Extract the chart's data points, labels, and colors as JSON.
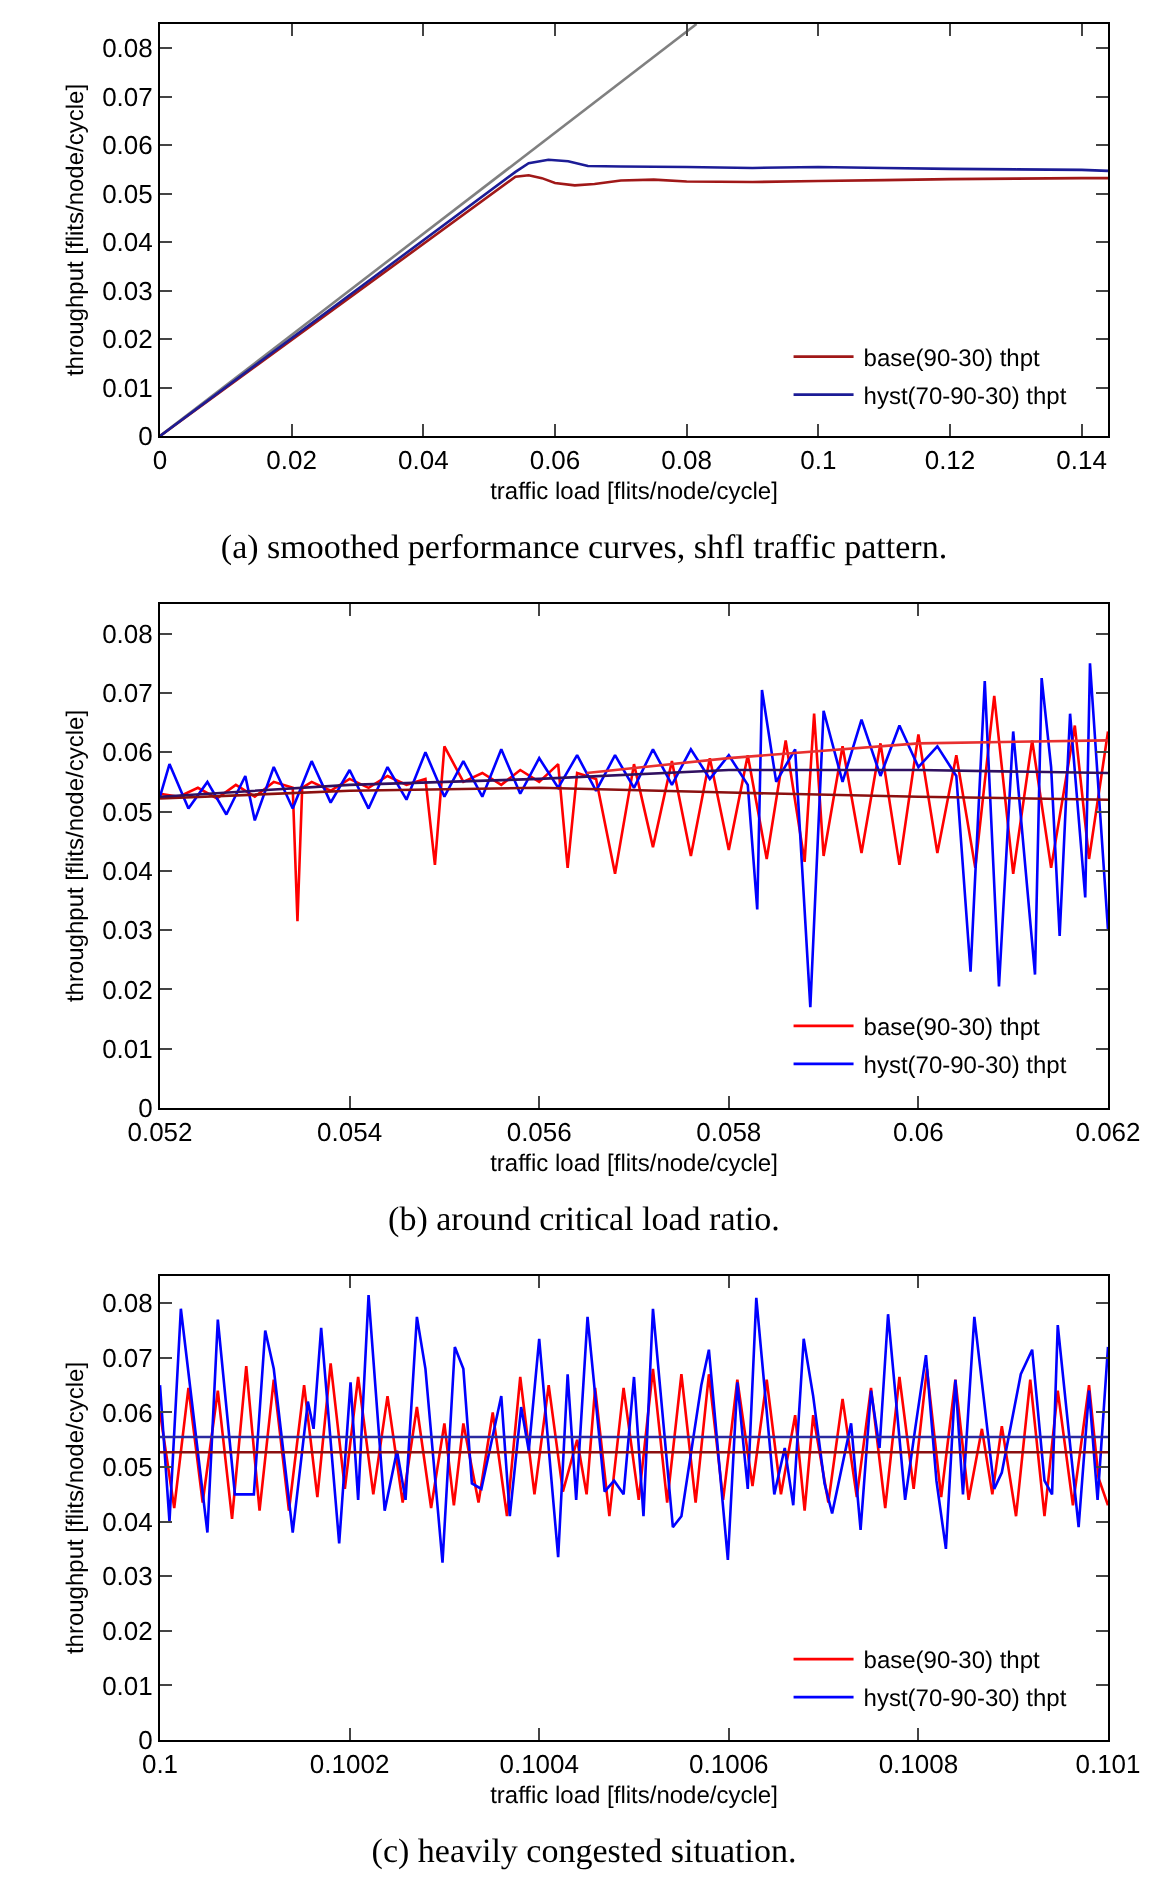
{
  "chart_data": [
    {
      "type": "line",
      "title": "(a) smoothed performance curves, shfl traffic pattern.",
      "xlabel": "traffic load [flits/node/cycle]",
      "ylabel": "throughput [flits/node/cycle]",
      "xlim": [
        0,
        0.144
      ],
      "ylim": [
        0,
        0.085
      ],
      "xticks": [
        0,
        0.02,
        0.04,
        0.06,
        0.08,
        0.1,
        0.12,
        0.14
      ],
      "yticks": [
        0,
        0.01,
        0.02,
        0.03,
        0.04,
        0.05,
        0.06,
        0.07,
        0.08
      ],
      "legend": "bottom right",
      "series": [
        {
          "color": "#808080",
          "x": [
            0,
            0.0815
          ],
          "values": [
            0,
            0.085
          ]
        },
        {
          "name": "base(90-30) thpt",
          "color": "#a01818",
          "x": [
            0,
            0.054,
            0.056,
            0.058,
            0.06,
            0.063,
            0.066,
            0.07,
            0.075,
            0.08,
            0.09,
            0.1,
            0.11,
            0.12,
            0.13,
            0.14,
            0.144
          ],
          "values": [
            0,
            0.0535,
            0.0538,
            0.0532,
            0.0522,
            0.0517,
            0.052,
            0.0527,
            0.0529,
            0.0525,
            0.0524,
            0.0526,
            0.0528,
            0.053,
            0.0531,
            0.0532,
            0.0532
          ]
        },
        {
          "name": "hyst(70-90-30) thpt",
          "color": "#1c1c96",
          "x": [
            0,
            0.054,
            0.056,
            0.059,
            0.062,
            0.065,
            0.07,
            0.08,
            0.09,
            0.1,
            0.11,
            0.12,
            0.13,
            0.14,
            0.144
          ],
          "values": [
            0,
            0.0545,
            0.0563,
            0.057,
            0.0567,
            0.0557,
            0.0556,
            0.0555,
            0.0553,
            0.0555,
            0.0553,
            0.0551,
            0.055,
            0.0549,
            0.0547
          ]
        }
      ]
    },
    {
      "type": "line",
      "title": "(b) around critical load ratio.",
      "xlabel": "traffic load [flits/node/cycle]",
      "ylabel": "throughput [flits/node/cycle]",
      "xlim": [
        0.052,
        0.062
      ],
      "ylim": [
        0,
        0.085
      ],
      "xticks": [
        0.052,
        0.054,
        0.056,
        0.058,
        0.06,
        0.062
      ],
      "yticks": [
        0,
        0.01,
        0.02,
        0.03,
        0.04,
        0.05,
        0.06,
        0.07,
        0.08
      ],
      "legend": "bottom right",
      "series": [
        {
          "name": "base(90-30) thpt",
          "color": "#ff0000",
          "x": [
            0.052,
            0.0522,
            0.0524,
            0.0526,
            0.0528,
            0.053,
            0.0532,
            0.0534,
            0.05345,
            0.0535,
            0.0536,
            0.0538,
            0.054,
            0.0542,
            0.0544,
            0.0546,
            0.0548,
            0.0549,
            0.055,
            0.0552,
            0.0554,
            0.0556,
            0.0558,
            0.056,
            0.0562,
            0.0563,
            0.0564,
            0.0566,
            0.0568,
            0.057,
            0.0572,
            0.0574,
            0.0576,
            0.0578,
            0.058,
            0.0582,
            0.0584,
            0.0586,
            0.0588,
            0.0589,
            0.059,
            0.0592,
            0.0594,
            0.0596,
            0.0598,
            0.06,
            0.0602,
            0.0604,
            0.0606,
            0.0608,
            0.061,
            0.0612,
            0.0614,
            0.06165,
            0.0618,
            0.062
          ],
          "values": [
            0.053,
            0.0525,
            0.054,
            0.0522,
            0.0545,
            0.0525,
            0.055,
            0.054,
            0.0315,
            0.054,
            0.055,
            0.0535,
            0.0555,
            0.054,
            0.056,
            0.0545,
            0.0555,
            0.041,
            0.061,
            0.055,
            0.0565,
            0.0545,
            0.057,
            0.055,
            0.058,
            0.0405,
            0.0565,
            0.0555,
            0.0395,
            0.058,
            0.044,
            0.0585,
            0.0425,
            0.059,
            0.0435,
            0.0595,
            0.042,
            0.062,
            0.0415,
            0.0665,
            0.0425,
            0.061,
            0.043,
            0.0615,
            0.041,
            0.063,
            0.043,
            0.0595,
            0.0405,
            0.0695,
            0.0395,
            0.062,
            0.0405,
            0.0645,
            0.042,
            0.0635
          ]
        },
        {
          "name": "hyst(70-90-30) thpt",
          "color": "#0000ff",
          "x": [
            0.052,
            0.0521,
            0.0523,
            0.0525,
            0.0527,
            0.0529,
            0.053,
            0.0532,
            0.0534,
            0.0536,
            0.0538,
            0.054,
            0.0542,
            0.0544,
            0.0546,
            0.0548,
            0.055,
            0.0552,
            0.0554,
            0.0556,
            0.0558,
            0.056,
            0.0562,
            0.0564,
            0.0566,
            0.0568,
            0.057,
            0.0572,
            0.0574,
            0.0576,
            0.0578,
            0.058,
            0.0582,
            0.0583,
            0.05835,
            0.0585,
            0.0587,
            0.05886,
            0.059,
            0.0592,
            0.0594,
            0.0596,
            0.0598,
            0.06,
            0.0602,
            0.0604,
            0.06055,
            0.0607,
            0.06085,
            0.061,
            0.06123,
            0.0613,
            0.0614,
            0.06149,
            0.0616,
            0.06176,
            0.06181,
            0.062
          ],
          "values": [
            0.0525,
            0.058,
            0.0505,
            0.055,
            0.0495,
            0.056,
            0.0485,
            0.0575,
            0.0505,
            0.0585,
            0.0515,
            0.057,
            0.0505,
            0.0575,
            0.052,
            0.06,
            0.0525,
            0.0585,
            0.0525,
            0.0605,
            0.053,
            0.059,
            0.054,
            0.0595,
            0.0535,
            0.0595,
            0.054,
            0.0605,
            0.0545,
            0.0605,
            0.0555,
            0.0595,
            0.0545,
            0.0335,
            0.0705,
            0.055,
            0.0605,
            0.017,
            0.067,
            0.055,
            0.0655,
            0.056,
            0.0645,
            0.0575,
            0.061,
            0.056,
            0.023,
            0.072,
            0.0205,
            0.0635,
            0.0225,
            0.0725,
            0.0575,
            0.029,
            0.0665,
            0.0355,
            0.075,
            0.03
          ]
        },
        {
          "color": "#e83030",
          "x": [
            0.0565,
            0.058,
            0.06,
            0.062
          ],
          "values": [
            0.0565,
            0.059,
            0.0615,
            0.062
          ]
        },
        {
          "color": "#8b1010",
          "x": [
            0.052,
            0.054,
            0.056,
            0.058,
            0.06,
            0.062
          ],
          "values": [
            0.0522,
            0.0535,
            0.054,
            0.0532,
            0.0525,
            0.052
          ]
        },
        {
          "color": "#301060",
          "x": [
            0.052,
            0.054,
            0.056,
            0.058,
            0.06,
            0.062
          ],
          "values": [
            0.0525,
            0.0545,
            0.0555,
            0.057,
            0.057,
            0.0565
          ]
        }
      ]
    },
    {
      "type": "line",
      "title": "(c) heavily congested situation.",
      "xlabel": "traffic load [flits/node/cycle]",
      "ylabel": "throughput [flits/node/cycle]",
      "xlim": [
        0.1,
        0.101
      ],
      "ylim": [
        0,
        0.085
      ],
      "xticks": [
        0.1,
        0.1002,
        0.1004,
        0.1006,
        0.1008,
        0.101
      ],
      "yticks": [
        0,
        0.01,
        0.02,
        0.03,
        0.04,
        0.05,
        0.06,
        0.07,
        0.08
      ],
      "legend": "bottom right",
      "series": [
        {
          "name": "base(90-30) thpt",
          "color": "#ff0000",
          "x": [
            0.1,
            0.100015,
            0.10003,
            0.100045,
            0.100061,
            0.100076,
            0.100091,
            0.100105,
            0.10012,
            0.100136,
            0.100152,
            0.100166,
            0.10018,
            0.100195,
            0.100209,
            0.100225,
            0.10024,
            0.100256,
            0.100271,
            0.100286,
            0.1003,
            0.10031,
            0.10032,
            0.100336,
            0.100351,
            0.100366,
            0.10038,
            0.100395,
            0.10041,
            0.100425,
            0.10044,
            0.10045,
            0.100459,
            0.100474,
            0.100489,
            0.100505,
            0.10052,
            0.100535,
            0.10055,
            0.100565,
            0.100579,
            0.100594,
            0.100609,
            0.100625,
            0.10064,
            0.100655,
            0.10067,
            0.10068,
            0.100689,
            0.100705,
            0.10072,
            0.100735,
            0.10075,
            0.100765,
            0.10078,
            0.100795,
            0.100809,
            0.100824,
            0.100839,
            0.100853,
            0.100867,
            0.100878,
            0.100888,
            0.100903,
            0.100918,
            0.100933,
            0.100947,
            0.100963,
            0.10098,
            0.10099,
            0.101
          ],
          "values": [
            0.06,
            0.0425,
            0.0645,
            0.0435,
            0.064,
            0.0405,
            0.0685,
            0.042,
            0.066,
            0.042,
            0.065,
            0.0445,
            0.069,
            0.046,
            0.0665,
            0.045,
            0.063,
            0.0435,
            0.061,
            0.0425,
            0.058,
            0.043,
            0.058,
            0.0435,
            0.06,
            0.041,
            0.0665,
            0.045,
            0.065,
            0.0455,
            0.055,
            0.045,
            0.0645,
            0.041,
            0.0645,
            0.044,
            0.068,
            0.0435,
            0.067,
            0.0435,
            0.067,
            0.044,
            0.066,
            0.0465,
            0.066,
            0.045,
            0.0595,
            0.042,
            0.0595,
            0.0435,
            0.0625,
            0.0445,
            0.0645,
            0.0425,
            0.0665,
            0.046,
            0.068,
            0.0445,
            0.066,
            0.044,
            0.057,
            0.045,
            0.0575,
            0.041,
            0.066,
            0.041,
            0.064,
            0.043,
            0.065,
            0.048,
            0.043
          ]
        },
        {
          "name": "hyst(70-90-30) thpt",
          "color": "#0000ff",
          "x": [
            0.1,
            0.10001,
            0.100022,
            0.10005,
            0.100061,
            0.100079,
            0.100099,
            0.100111,
            0.10012,
            0.10014,
            0.100156,
            0.100162,
            0.10017,
            0.100189,
            0.100201,
            0.100209,
            0.10022,
            0.100237,
            0.10025,
            0.100259,
            0.100271,
            0.10028,
            0.100298,
            0.100311,
            0.10032,
            0.100329,
            0.100339,
            0.10036,
            0.100369,
            0.100381,
            0.100389,
            0.1004,
            0.10042,
            0.10043,
            0.100439,
            0.100451,
            0.100469,
            0.100479,
            0.100489,
            0.1005,
            0.10051,
            0.10052,
            0.100541,
            0.10055,
            0.100571,
            0.100579,
            0.100599,
            0.100609,
            0.10062,
            0.100629,
            0.100648,
            0.100659,
            0.100668,
            0.100679,
            0.100689,
            0.100701,
            0.100709,
            0.100729,
            0.100739,
            0.10075,
            0.100759,
            0.100768,
            0.100786,
            0.100797,
            0.100808,
            0.100819,
            0.100829,
            0.100839,
            0.100847,
            0.100859,
            0.10088,
            0.100888,
            0.100908,
            0.10092,
            0.100933,
            0.100941,
            0.100947,
            0.100969,
            0.10098,
            0.100989,
            0.101
          ],
          "values": [
            0.065,
            0.04,
            0.079,
            0.038,
            0.077,
            0.045,
            0.045,
            0.075,
            0.068,
            0.038,
            0.062,
            0.057,
            0.0755,
            0.036,
            0.0655,
            0.044,
            0.0815,
            0.042,
            0.053,
            0.044,
            0.0775,
            0.068,
            0.0325,
            0.072,
            0.068,
            0.047,
            0.046,
            0.063,
            0.041,
            0.061,
            0.053,
            0.0735,
            0.0335,
            0.067,
            0.044,
            0.0775,
            0.0455,
            0.0475,
            0.045,
            0.0665,
            0.041,
            0.079,
            0.039,
            0.041,
            0.065,
            0.0715,
            0.033,
            0.0655,
            0.046,
            0.081,
            0.045,
            0.0535,
            0.043,
            0.0735,
            0.063,
            0.047,
            0.0415,
            0.058,
            0.0385,
            0.064,
            0.0535,
            0.078,
            0.044,
            0.0575,
            0.0705,
            0.0475,
            0.035,
            0.066,
            0.045,
            0.0775,
            0.046,
            0.049,
            0.067,
            0.0715,
            0.0475,
            0.045,
            0.076,
            0.039,
            0.064,
            0.044,
            0.072
          ]
        },
        {
          "color": "#8b1010",
          "x": [
            0.1,
            0.101
          ],
          "values": [
            0.0527,
            0.0527
          ]
        },
        {
          "color": "#2a2aa0",
          "x": [
            0.1,
            0.101
          ],
          "values": [
            0.0555,
            0.0555
          ]
        }
      ]
    }
  ]
}
